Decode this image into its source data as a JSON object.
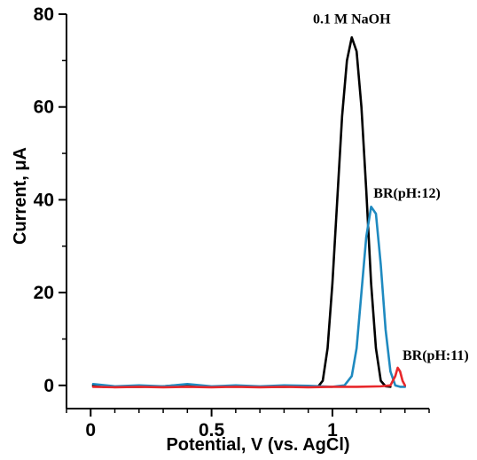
{
  "chart_data": {
    "type": "line",
    "xlabel": "Potential, V (vs. AgCl)",
    "ylabel": "Current, μA",
    "xlim": [
      -0.1,
      1.4
    ],
    "ylim": [
      -5,
      80
    ],
    "xticks": [
      0,
      0.5,
      1
    ],
    "xtick_labels": [
      "0",
      "0.5",
      "1"
    ],
    "yticks": [
      0,
      20,
      40,
      60,
      80
    ],
    "ytick_labels": [
      "0",
      "20",
      "40",
      "60",
      "80"
    ],
    "grid": false,
    "legend": "none",
    "series": [
      {
        "name": "0.1 M NaOH",
        "color": "#000000",
        "x": [
          0.01,
          0.05,
          0.1,
          0.2,
          0.3,
          0.4,
          0.5,
          0.6,
          0.7,
          0.8,
          0.9,
          0.94,
          0.96,
          0.98,
          1.0,
          1.02,
          1.04,
          1.06,
          1.08,
          1.1,
          1.12,
          1.14,
          1.16,
          1.18,
          1.2,
          1.22,
          1.24
        ],
        "y": [
          0,
          -0.3,
          -0.3,
          -0.3,
          -0.2,
          0.2,
          -0.3,
          -0.2,
          -0.3,
          -0.3,
          -0.2,
          -0.3,
          1,
          8,
          22,
          40,
          58,
          70,
          75,
          72,
          60,
          42,
          22,
          8,
          1,
          -0.2,
          -0.3
        ]
      },
      {
        "name": "BR(pH:12)",
        "color": "#1f8ac0",
        "x": [
          0.01,
          0.1,
          0.2,
          0.3,
          0.4,
          0.5,
          0.6,
          0.7,
          0.8,
          0.9,
          1.0,
          1.05,
          1.08,
          1.1,
          1.12,
          1.14,
          1.16,
          1.18,
          1.2,
          1.22,
          1.24,
          1.26,
          1.28,
          1.3
        ],
        "y": [
          0.3,
          -0.2,
          0,
          -0.2,
          0.3,
          -0.2,
          0,
          -0.2,
          0,
          -0.1,
          -0.3,
          0,
          2,
          8,
          20,
          32,
          38.5,
          37,
          26,
          12,
          3,
          0,
          -0.3,
          -0.3
        ]
      },
      {
        "name": "BR(pH:11)",
        "color": "#e8282b",
        "x": [
          0.01,
          0.1,
          0.2,
          0.3,
          0.4,
          0.5,
          0.6,
          0.7,
          0.8,
          0.9,
          1.0,
          1.1,
          1.2,
          1.24,
          1.26,
          1.27,
          1.28,
          1.29,
          1.3
        ],
        "y": [
          -0.3,
          -0.4,
          -0.3,
          -0.4,
          -0.3,
          -0.4,
          -0.3,
          -0.4,
          -0.3,
          -0.4,
          -0.3,
          -0.3,
          -0.2,
          0,
          2,
          3.8,
          3,
          1,
          0
        ]
      }
    ],
    "annotations": [
      {
        "text": "0.1 M NaOH",
        "x": 1.08,
        "y": 78,
        "anchor": "middle"
      },
      {
        "text": "BR(pH:12)",
        "x": 1.17,
        "y": 40.5,
        "anchor": "start"
      },
      {
        "text": "BR(pH:11)",
        "x": 1.29,
        "y": 5.5,
        "anchor": "start"
      }
    ]
  }
}
